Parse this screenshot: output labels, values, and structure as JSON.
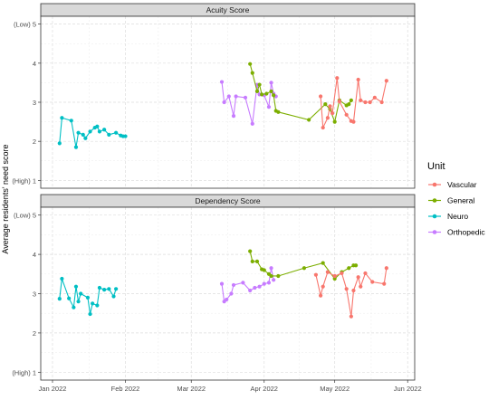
{
  "chart_data": {
    "type": "line",
    "ylabel": "Average residents' need score",
    "x_ticks": [
      "Jan 2022",
      "Feb 2022",
      "Mar 2022",
      "Apr 2022",
      "May 2022",
      "Jun 2022"
    ],
    "x_range": [
      "2021-12-27",
      "2022-06-04"
    ],
    "y_range": [
      0.8,
      5.2
    ],
    "y_ticks": [
      "(High) 1",
      "2",
      "3",
      "4",
      "(Low) 5"
    ],
    "grid": true,
    "legend": {
      "title": "Unit",
      "position": "right",
      "items": [
        {
          "name": "Vascular",
          "color": "#F8766D"
        },
        {
          "name": "General",
          "color": "#7CAE00"
        },
        {
          "name": "Neuro",
          "color": "#00BFC4"
        },
        {
          "name": "Orthopedic",
          "color": "#C77CFF"
        }
      ]
    },
    "panels": [
      {
        "title": "Acuity Score",
        "series": [
          {
            "name": "Neuro",
            "color": "#00BFC4",
            "points": [
              [
                "2022-01-04",
                1.95
              ],
              [
                "2022-01-05",
                2.6
              ],
              [
                "2022-01-09",
                2.53
              ],
              [
                "2022-01-11",
                1.85
              ],
              [
                "2022-01-12",
                2.22
              ],
              [
                "2022-01-14",
                2.17
              ],
              [
                "2022-01-15",
                2.08
              ],
              [
                "2022-01-17",
                2.25
              ],
              [
                "2022-01-19",
                2.35
              ],
              [
                "2022-01-20",
                2.38
              ],
              [
                "2022-01-21",
                2.25
              ],
              [
                "2022-01-23",
                2.3
              ],
              [
                "2022-01-25",
                2.17
              ],
              [
                "2022-01-28",
                2.22
              ],
              [
                "2022-01-30",
                2.15
              ],
              [
                "2022-01-31",
                2.13
              ],
              [
                "2022-02-01",
                2.13
              ]
            ]
          },
          {
            "name": "Orthopedic",
            "color": "#C77CFF",
            "points": [
              [
                "2022-03-14",
                3.52
              ],
              [
                "2022-03-15",
                3.0
              ],
              [
                "2022-03-17",
                3.15
              ],
              [
                "2022-03-19",
                2.65
              ],
              [
                "2022-03-20",
                3.15
              ],
              [
                "2022-03-24",
                3.12
              ],
              [
                "2022-03-27",
                2.45
              ],
              [
                "2022-03-29",
                3.45
              ],
              [
                "2022-03-30",
                3.2
              ],
              [
                "2022-04-01",
                3.18
              ],
              [
                "2022-04-03",
                2.88
              ],
              [
                "2022-04-04",
                3.5
              ],
              [
                "2022-04-05",
                3.22
              ],
              [
                "2022-04-06",
                3.15
              ]
            ]
          },
          {
            "name": "General",
            "color": "#7CAE00",
            "points": [
              [
                "2022-03-26",
                3.98
              ],
              [
                "2022-03-27",
                3.75
              ],
              [
                "2022-03-29",
                3.28
              ],
              [
                "2022-03-30",
                3.45
              ],
              [
                "2022-03-31",
                3.2
              ],
              [
                "2022-04-02",
                3.22
              ],
              [
                "2022-04-04",
                3.28
              ],
              [
                "2022-04-05",
                3.18
              ],
              [
                "2022-04-06",
                2.78
              ],
              [
                "2022-04-07",
                2.75
              ],
              [
                "2022-04-20",
                2.55
              ],
              [
                "2022-04-27",
                2.95
              ],
              [
                "2022-04-29",
                2.82
              ],
              [
                "2022-05-01",
                2.5
              ],
              [
                "2022-05-03",
                3.05
              ],
              [
                "2022-05-06",
                2.92
              ],
              [
                "2022-05-07",
                2.95
              ],
              [
                "2022-05-08",
                3.05
              ]
            ]
          },
          {
            "name": "Vascular",
            "color": "#F8766D",
            "points": [
              [
                "2022-04-25",
                3.15
              ],
              [
                "2022-04-26",
                2.35
              ],
              [
                "2022-04-28",
                2.6
              ],
              [
                "2022-04-29",
                2.9
              ],
              [
                "2022-04-30",
                2.72
              ],
              [
                "2022-05-02",
                3.62
              ],
              [
                "2022-05-03",
                3.02
              ],
              [
                "2022-05-06",
                2.68
              ],
              [
                "2022-05-08",
                2.52
              ],
              [
                "2022-05-09",
                2.5
              ],
              [
                "2022-05-11",
                3.58
              ],
              [
                "2022-05-12",
                3.05
              ],
              [
                "2022-05-14",
                3.0
              ],
              [
                "2022-05-16",
                3.0
              ],
              [
                "2022-05-18",
                3.12
              ],
              [
                "2022-05-21",
                3.0
              ],
              [
                "2022-05-23",
                3.55
              ]
            ]
          }
        ]
      },
      {
        "title": "Dependency Score",
        "series": [
          {
            "name": "Neuro",
            "color": "#00BFC4",
            "points": [
              [
                "2022-01-04",
                2.87
              ],
              [
                "2022-01-05",
                3.38
              ],
              [
                "2022-01-08",
                2.88
              ],
              [
                "2022-01-10",
                2.65
              ],
              [
                "2022-01-11",
                3.18
              ],
              [
                "2022-01-12",
                2.8
              ],
              [
                "2022-01-13",
                3.0
              ],
              [
                "2022-01-16",
                2.9
              ],
              [
                "2022-01-17",
                2.48
              ],
              [
                "2022-01-18",
                2.75
              ],
              [
                "2022-01-20",
                2.7
              ],
              [
                "2022-01-21",
                3.15
              ],
              [
                "2022-01-23",
                3.1
              ],
              [
                "2022-01-25",
                3.12
              ],
              [
                "2022-01-27",
                2.93
              ],
              [
                "2022-01-28",
                3.12
              ]
            ]
          },
          {
            "name": "Orthopedic",
            "color": "#C77CFF",
            "points": [
              [
                "2022-03-14",
                3.25
              ],
              [
                "2022-03-15",
                2.8
              ],
              [
                "2022-03-16",
                2.85
              ],
              [
                "2022-03-18",
                3.0
              ],
              [
                "2022-03-19",
                3.22
              ],
              [
                "2022-03-23",
                3.28
              ],
              [
                "2022-03-26",
                3.08
              ],
              [
                "2022-03-28",
                3.15
              ],
              [
                "2022-03-30",
                3.18
              ],
              [
                "2022-04-01",
                3.25
              ],
              [
                "2022-04-03",
                3.28
              ],
              [
                "2022-04-04",
                3.65
              ],
              [
                "2022-04-05",
                3.35
              ]
            ]
          },
          {
            "name": "General",
            "color": "#7CAE00",
            "points": [
              [
                "2022-03-26",
                4.08
              ],
              [
                "2022-03-27",
                3.82
              ],
              [
                "2022-03-29",
                3.82
              ],
              [
                "2022-03-31",
                3.62
              ],
              [
                "2022-04-01",
                3.6
              ],
              [
                "2022-04-03",
                3.5
              ],
              [
                "2022-04-04",
                3.45
              ],
              [
                "2022-04-07",
                3.45
              ],
              [
                "2022-04-18",
                3.65
              ],
              [
                "2022-04-26",
                3.78
              ],
              [
                "2022-05-01",
                3.38
              ],
              [
                "2022-05-04",
                3.55
              ],
              [
                "2022-05-07",
                3.65
              ],
              [
                "2022-05-09",
                3.72
              ],
              [
                "2022-05-10",
                3.72
              ]
            ]
          },
          {
            "name": "Vascular",
            "color": "#F8766D",
            "points": [
              [
                "2022-04-23",
                3.48
              ],
              [
                "2022-04-25",
                2.95
              ],
              [
                "2022-04-26",
                3.18
              ],
              [
                "2022-04-28",
                3.55
              ],
              [
                "2022-05-01",
                3.45
              ],
              [
                "2022-05-04",
                3.52
              ],
              [
                "2022-05-06",
                3.12
              ],
              [
                "2022-05-08",
                2.42
              ],
              [
                "2022-05-09",
                3.08
              ],
              [
                "2022-05-11",
                3.42
              ],
              [
                "2022-05-12",
                3.18
              ],
              [
                "2022-05-14",
                3.52
              ],
              [
                "2022-05-17",
                3.3
              ],
              [
                "2022-05-22",
                3.25
              ],
              [
                "2022-05-23",
                3.65
              ]
            ]
          }
        ]
      }
    ]
  }
}
